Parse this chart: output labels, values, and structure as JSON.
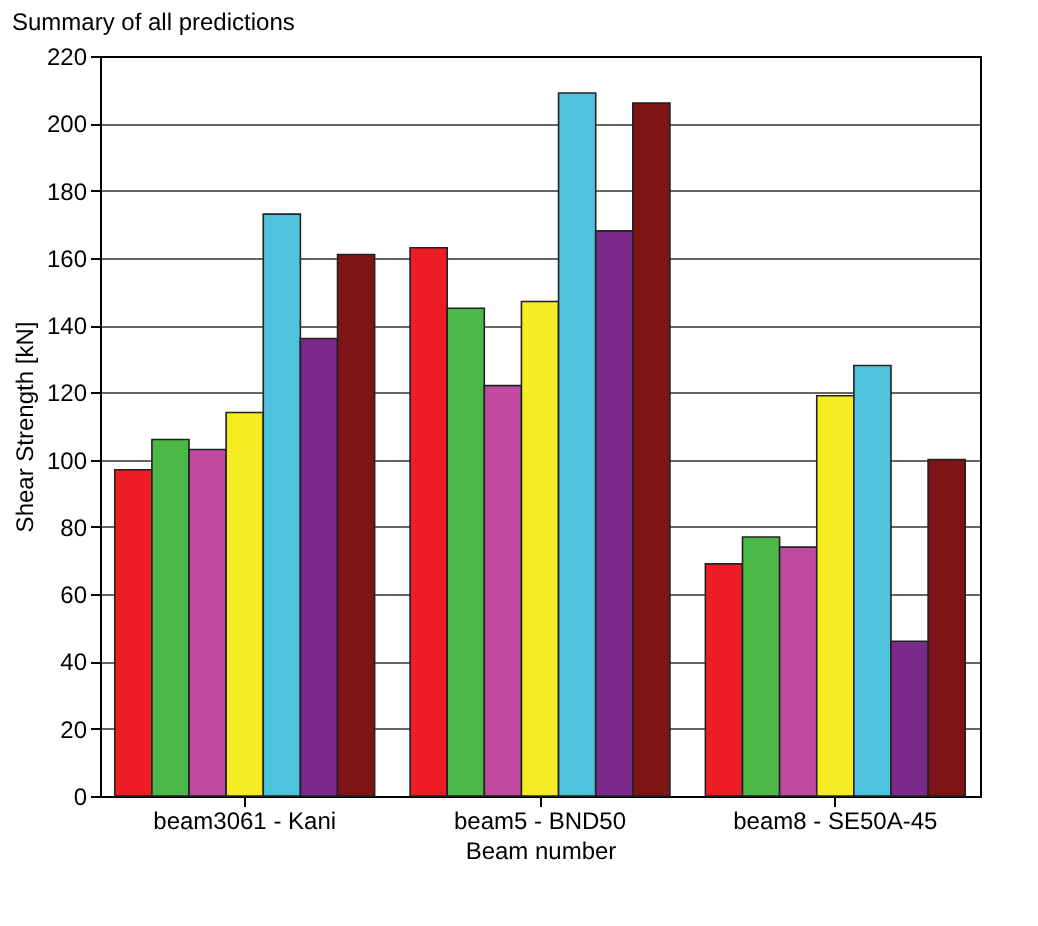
{
  "chart_data": {
    "type": "bar",
    "title": "Summary of all predictions",
    "xlabel": "Beam number",
    "ylabel": "Shear Strength [kN]",
    "categories": [
      "beam3061 - Kani",
      "beam5 - BND50",
      "beam8 - SE50A-45"
    ],
    "series": [
      {
        "color": "#ee1c25",
        "values": [
          97,
          163,
          69
        ]
      },
      {
        "color": "#4cb848",
        "values": [
          106,
          145,
          77
        ]
      },
      {
        "color": "#c04aa0",
        "values": [
          103,
          122,
          74
        ]
      },
      {
        "color": "#f5ec22",
        "values": [
          114,
          147,
          119
        ]
      },
      {
        "color": "#4fc3dc",
        "values": [
          173,
          209,
          128
        ]
      },
      {
        "color": "#7b2a8c",
        "values": [
          136,
          168,
          46
        ]
      },
      {
        "color": "#7f1416",
        "values": [
          161,
          206,
          100
        ]
      }
    ],
    "ylim": [
      0,
      220
    ],
    "yticks": [
      0,
      20,
      40,
      60,
      80,
      100,
      120,
      140,
      160,
      180,
      200,
      220
    ],
    "grid": "y",
    "legend": false
  }
}
